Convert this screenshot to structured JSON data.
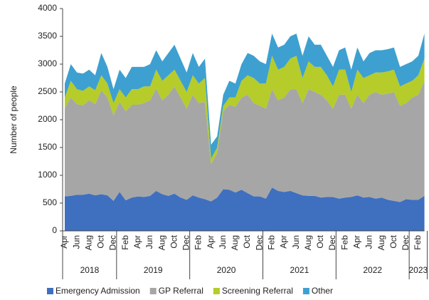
{
  "chart_data": {
    "type": "stacked_area",
    "y_label": "Number of people",
    "categories": [
      "Apr",
      null,
      "Jun",
      null,
      "Aug",
      null,
      "Oct",
      null,
      "Dec",
      null,
      "Feb",
      null,
      "Apr",
      null,
      "Jun",
      null,
      "Aug",
      null,
      "Oct",
      null,
      "Dec",
      null,
      "Feb",
      null,
      "Apr",
      null,
      "Jun",
      null,
      "Aug",
      null,
      "Oct",
      null,
      "Dec",
      null,
      "Feb",
      null,
      "Apr",
      null,
      "Jun",
      null,
      "Aug",
      null,
      "Oct",
      null,
      "Dec",
      null,
      "Feb",
      null,
      "Apr",
      null,
      "Jun",
      null,
      "Aug",
      null,
      "Oct",
      null,
      "Dec",
      null,
      "Feb",
      null
    ],
    "year_groups": [
      {
        "label": "2018",
        "months": 9
      },
      {
        "label": "2019",
        "months": 12
      },
      {
        "label": "2020",
        "months": 12
      },
      {
        "label": "2021",
        "months": 12
      },
      {
        "label": "2022",
        "months": 12
      },
      {
        "label": "2023",
        "months": 3
      }
    ],
    "series": [
      {
        "name": "Emergency Admission",
        "color": "#3f6fbf",
        "values": [
          620,
          630,
          650,
          650,
          670,
          640,
          660,
          640,
          540,
          700,
          550,
          600,
          620,
          610,
          630,
          720,
          660,
          630,
          670,
          600,
          560,
          640,
          600,
          570,
          530,
          600,
          750,
          740,
          690,
          740,
          680,
          620,
          620,
          580,
          780,
          720,
          700,
          720,
          680,
          640,
          630,
          630,
          600,
          610,
          610,
          580,
          600,
          610,
          640,
          600,
          610,
          580,
          600,
          560,
          540,
          520,
          570,
          560,
          560,
          630
        ]
      },
      {
        "name": "GP Referral",
        "color": "#a6a6a6",
        "values": [
          1580,
          1770,
          1630,
          1610,
          1680,
          1640,
          1870,
          1760,
          1540,
          1620,
          1600,
          1670,
          1650,
          1690,
          1720,
          1840,
          1690,
          1820,
          1930,
          1800,
          1640,
          1810,
          1700,
          1750,
          670,
          800,
          1400,
          1530,
          1540,
          1660,
          1770,
          1680,
          1630,
          1620,
          1770,
          1630,
          1700,
          1830,
          1870,
          1660,
          1920,
          1870,
          1850,
          1740,
          1590,
          1870,
          1850,
          1590,
          1810,
          1700,
          1840,
          1920,
          1850,
          1910,
          1960,
          1730,
          1730,
          1840,
          1890,
          2070
        ]
      },
      {
        "name": "Screening Referral",
        "color": "#b5cc2a",
        "values": [
          200,
          300,
          270,
          260,
          250,
          250,
          270,
          250,
          220,
          230,
          250,
          280,
          280,
          300,
          250,
          340,
          350,
          350,
          300,
          300,
          300,
          350,
          350,
          430,
          100,
          100,
          100,
          130,
          170,
          300,
          350,
          450,
          400,
          450,
          600,
          550,
          550,
          550,
          600,
          450,
          500,
          450,
          500,
          450,
          400,
          450,
          450,
          300,
          450,
          450,
          350,
          350,
          400,
          400,
          400,
          350,
          350,
          300,
          350,
          400
        ]
      },
      {
        "name": "Other",
        "color": "#3ea0d0",
        "values": [
          250,
          300,
          300,
          310,
          300,
          270,
          400,
          300,
          250,
          350,
          350,
          400,
          400,
          350,
          400,
          350,
          350,
          400,
          450,
          400,
          350,
          400,
          300,
          350,
          250,
          200,
          200,
          300,
          250,
          300,
          400,
          400,
          400,
          350,
          400,
          400,
          400,
          400,
          400,
          400,
          450,
          400,
          400,
          350,
          350,
          350,
          400,
          400,
          400,
          300,
          400,
          400,
          400,
          400,
          400,
          350,
          350,
          350,
          350,
          450
        ]
      }
    ],
    "ylim": [
      0,
      4000
    ],
    "yticks": [
      0,
      500,
      1000,
      1500,
      2000,
      2500,
      3000,
      3500,
      4000
    ],
    "grid": false,
    "legend": "bottom"
  }
}
